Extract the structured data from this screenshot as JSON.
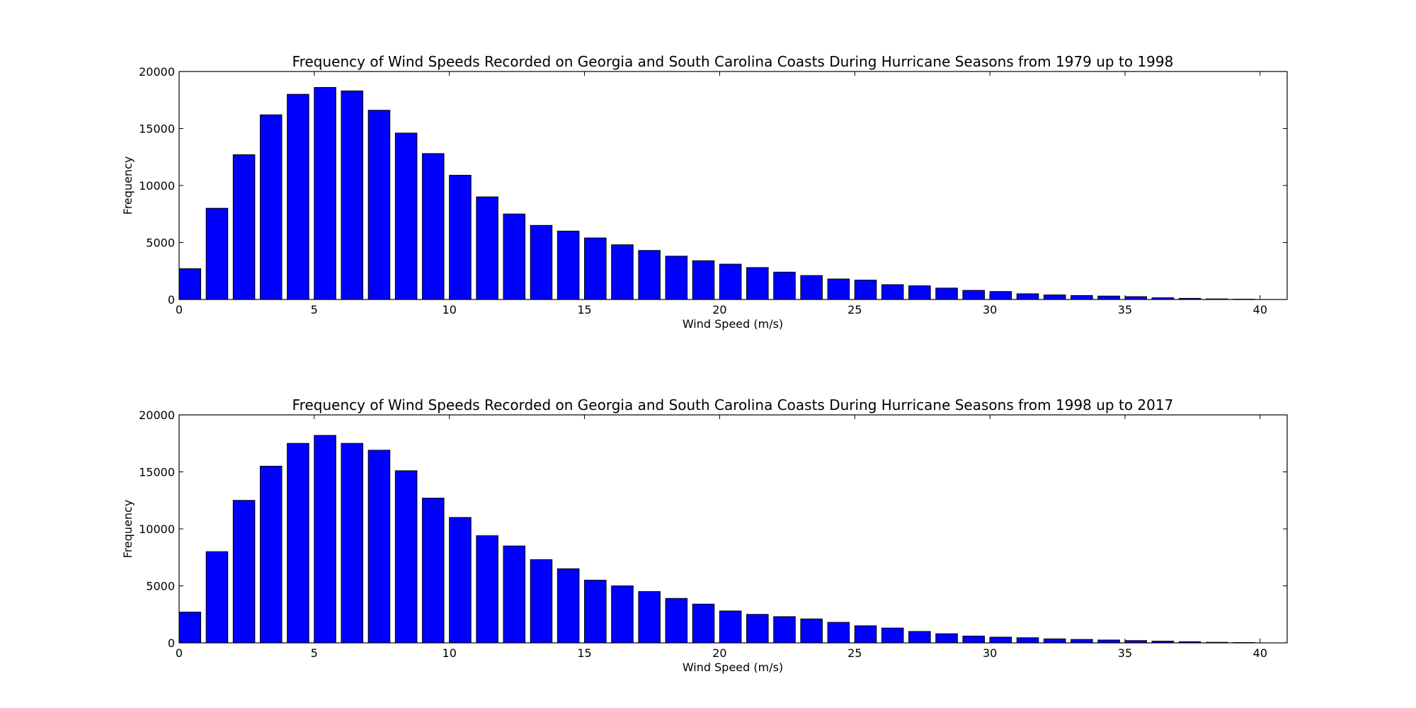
{
  "chart_data": [
    {
      "type": "bar",
      "title": "Frequency of Wind Speeds Recorded on Georgia and South Carolina Coasts During Hurricane Seasons from 1979 up to 1998",
      "xlabel": "Wind Speed (m/s)",
      "ylabel": "Frequency",
      "xlim": [
        0,
        41
      ],
      "ylim": [
        0,
        20000
      ],
      "xticks": [
        0,
        5,
        10,
        15,
        20,
        25,
        30,
        35,
        40
      ],
      "yticks": [
        0,
        5000,
        10000,
        15000,
        20000
      ],
      "bar_width": 0.8,
      "bar_color": "#0000ff",
      "x": [
        0,
        1,
        2,
        3,
        4,
        5,
        6,
        7,
        8,
        9,
        10,
        11,
        12,
        13,
        14,
        15,
        16,
        17,
        18,
        19,
        20,
        21,
        22,
        23,
        24,
        25,
        26,
        27,
        28,
        29,
        30,
        31,
        32,
        33,
        34,
        35,
        36,
        37,
        38,
        39
      ],
      "values": [
        2700,
        8000,
        12700,
        16200,
        18000,
        18600,
        18300,
        16600,
        14600,
        12800,
        10900,
        9000,
        7500,
        6500,
        6000,
        5400,
        4800,
        4300,
        3800,
        3400,
        3100,
        2800,
        2400,
        2100,
        1800,
        1700,
        1300,
        1200,
        1000,
        800,
        700,
        500,
        400,
        350,
        300,
        250,
        150,
        100,
        50,
        30
      ]
    },
    {
      "type": "bar",
      "title": "Frequency of Wind Speeds Recorded on Georgia and South Carolina Coasts During Hurricane Seasons from 1998 up to 2017",
      "xlabel": "Wind Speed (m/s)",
      "ylabel": "Frequency",
      "xlim": [
        0,
        41
      ],
      "ylim": [
        0,
        20000
      ],
      "xticks": [
        0,
        5,
        10,
        15,
        20,
        25,
        30,
        35,
        40
      ],
      "yticks": [
        0,
        5000,
        10000,
        15000,
        20000
      ],
      "bar_width": 0.8,
      "bar_color": "#0000ff",
      "x": [
        0,
        1,
        2,
        3,
        4,
        5,
        6,
        7,
        8,
        9,
        10,
        11,
        12,
        13,
        14,
        15,
        16,
        17,
        18,
        19,
        20,
        21,
        22,
        23,
        24,
        25,
        26,
        27,
        28,
        29,
        30,
        31,
        32,
        33,
        34,
        35,
        36,
        37,
        38,
        39
      ],
      "values": [
        2700,
        8000,
        12500,
        15500,
        17500,
        18200,
        17500,
        16900,
        15100,
        12700,
        11000,
        9400,
        8500,
        7300,
        6500,
        5500,
        5000,
        4500,
        3900,
        3400,
        2800,
        2500,
        2300,
        2100,
        1800,
        1500,
        1300,
        1000,
        800,
        600,
        500,
        450,
        350,
        300,
        250,
        200,
        150,
        100,
        50,
        30
      ]
    }
  ]
}
